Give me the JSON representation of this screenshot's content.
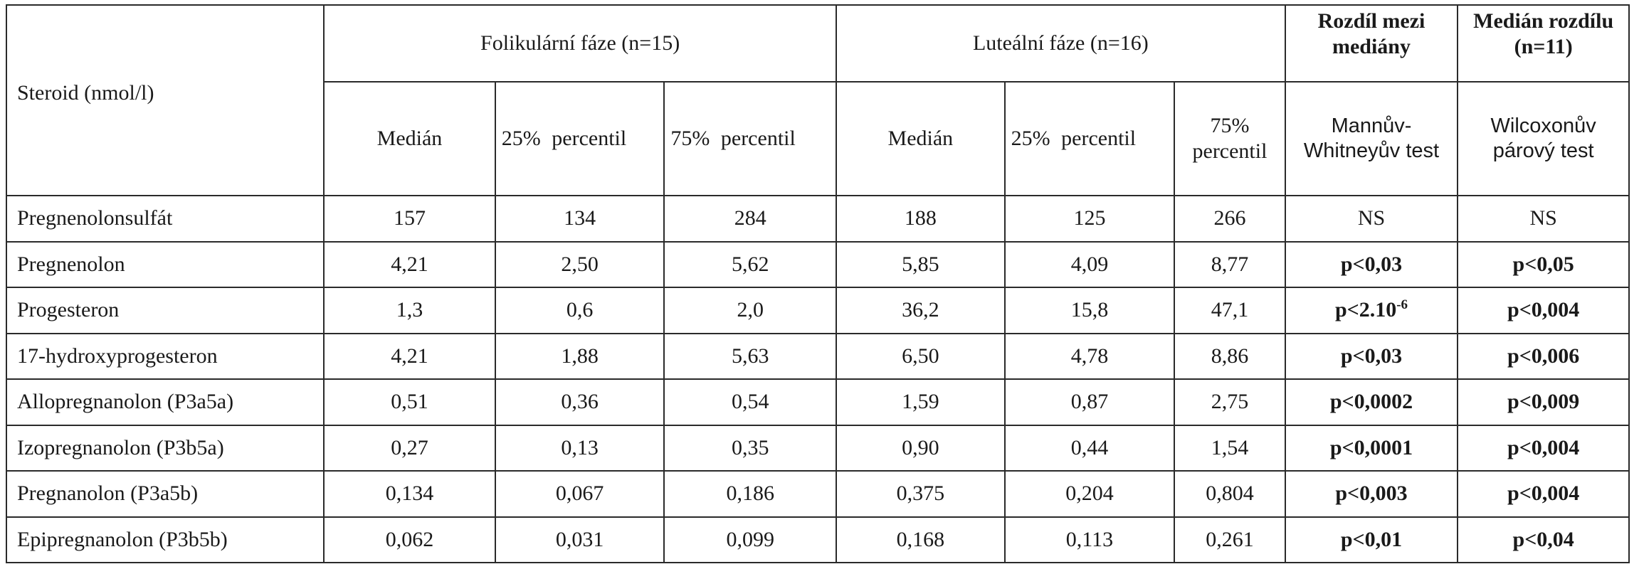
{
  "table": {
    "stub_header": "Steroid (nmol/l)",
    "group_headers": {
      "follicular": "Folikulární fáze (n=15)",
      "luteal": "Luteální fáze (n=16)",
      "diff_medians": "Rozdíl mezi mediány",
      "median_diff": "Medián rozdílu (n=11)"
    },
    "sub_headers": {
      "median": "Medián",
      "p25": "25%  percentil",
      "p75": "75%  percentil",
      "p75_luteal": "75% percentil",
      "mann_whitney": "Mannův-Whitneyův test",
      "wilcoxon": "Wilcoxonův párový test"
    },
    "rows": [
      {
        "steroid": "Pregnenolonsulfát",
        "f_med": "157",
        "f_p25": "134",
        "f_p75": "284",
        "l_med": "188",
        "l_p25": "125",
        "l_p75": "266",
        "mw": "NS",
        "mw_exp": "",
        "wil": "NS",
        "sig": false
      },
      {
        "steroid": "Pregnenolon",
        "f_med": "4,21",
        "f_p25": "2,50",
        "f_p75": "5,62",
        "l_med": "5,85",
        "l_p25": "4,09",
        "l_p75": "8,77",
        "mw": "p<0,03",
        "mw_exp": "",
        "wil": "p<0,05",
        "sig": true
      },
      {
        "steroid": "Progesteron",
        "f_med": "1,3",
        "f_p25": "0,6",
        "f_p75": "2,0",
        "l_med": "36,2",
        "l_p25": "15,8",
        "l_p75": "47,1",
        "mw": "p<2.10",
        "mw_exp": "-6",
        "wil": "p<0,004",
        "sig": true
      },
      {
        "steroid": "17-hydroxyprogesteron",
        "f_med": "4,21",
        "f_p25": "1,88",
        "f_p75": "5,63",
        "l_med": "6,50",
        "l_p25": "4,78",
        "l_p75": "8,86",
        "mw": "p<0,03",
        "mw_exp": "",
        "wil": "p<0,006",
        "sig": true
      },
      {
        "steroid": "Allopregnanolon (P3a5a)",
        "f_med": "0,51",
        "f_p25": "0,36",
        "f_p75": "0,54",
        "l_med": "1,59",
        "l_p25": "0,87",
        "l_p75": "2,75",
        "mw": "p<0,0002",
        "mw_exp": "",
        "wil": "p<0,009",
        "sig": true
      },
      {
        "steroid": "Izopregnanolon (P3b5a)",
        "f_med": "0,27",
        "f_p25": "0,13",
        "f_p75": "0,35",
        "l_med": "0,90",
        "l_p25": "0,44",
        "l_p75": "1,54",
        "mw": "p<0,0001",
        "mw_exp": "",
        "wil": "p<0,004",
        "sig": true
      },
      {
        "steroid": "Pregnanolon (P3a5b)",
        "f_med": "0,134",
        "f_p25": "0,067",
        "f_p75": "0,186",
        "l_med": "0,375",
        "l_p25": "0,204",
        "l_p75": "0,804",
        "mw": "p<0,003",
        "mw_exp": "",
        "wil": "p<0,004",
        "sig": true
      },
      {
        "steroid": "Epipregnanolon (P3b5b)",
        "f_med": "0,062",
        "f_p25": "0,031",
        "f_p75": "0,099",
        "l_med": "0,168",
        "l_p25": "0,113",
        "l_p75": "0,261",
        "mw": "p<0,01",
        "mw_exp": "",
        "wil": "p<0,04",
        "sig": true
      }
    ]
  }
}
